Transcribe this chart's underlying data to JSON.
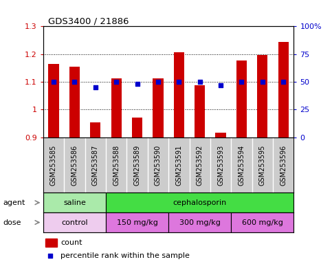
{
  "title": "GDS3400 / 21886",
  "samples": [
    "GSM253585",
    "GSM253586",
    "GSM253587",
    "GSM253588",
    "GSM253589",
    "GSM253590",
    "GSM253591",
    "GSM253592",
    "GSM253593",
    "GSM253594",
    "GSM253595",
    "GSM253596"
  ],
  "counts": [
    1.165,
    1.155,
    0.955,
    1.112,
    0.97,
    1.112,
    1.207,
    1.087,
    0.917,
    1.178,
    1.197,
    1.245
  ],
  "percentiles": [
    50,
    50,
    45,
    50,
    48,
    50,
    50,
    50,
    47,
    50,
    50,
    50
  ],
  "bar_color": "#cc0000",
  "dot_color": "#0000cc",
  "ylim_left": [
    0.9,
    1.3
  ],
  "ylim_right": [
    0,
    100
  ],
  "yticks_left": [
    0.9,
    1.0,
    1.1,
    1.2,
    1.3
  ],
  "yticks_right": [
    0,
    25,
    50,
    75,
    100
  ],
  "ytick_labels_left": [
    "0.9",
    "1",
    "1.1",
    "1.2",
    "1.3"
  ],
  "ytick_labels_right": [
    "0",
    "25",
    "50",
    "75",
    "100%"
  ],
  "agent_groups": [
    {
      "label": "saline",
      "start": 0,
      "end": 3,
      "color": "#aaeaaa"
    },
    {
      "label": "cephalosporin",
      "start": 3,
      "end": 12,
      "color": "#44dd44"
    }
  ],
  "dose_groups": [
    {
      "label": "control",
      "start": 0,
      "end": 3,
      "color": "#eeccee"
    },
    {
      "label": "150 mg/kg",
      "start": 3,
      "end": 6,
      "color": "#dd77dd"
    },
    {
      "label": "300 mg/kg",
      "start": 6,
      "end": 9,
      "color": "#dd77dd"
    },
    {
      "label": "600 mg/kg",
      "start": 9,
      "end": 12,
      "color": "#dd77dd"
    }
  ],
  "tick_bg_color": "#cccccc",
  "legend_count_color": "#cc0000",
  "legend_dot_color": "#0000cc",
  "tick_label_color_left": "#cc0000",
  "tick_label_color_right": "#0000cc",
  "bar_width": 0.5,
  "label_fontsize": 8,
  "sample_fontsize": 7
}
